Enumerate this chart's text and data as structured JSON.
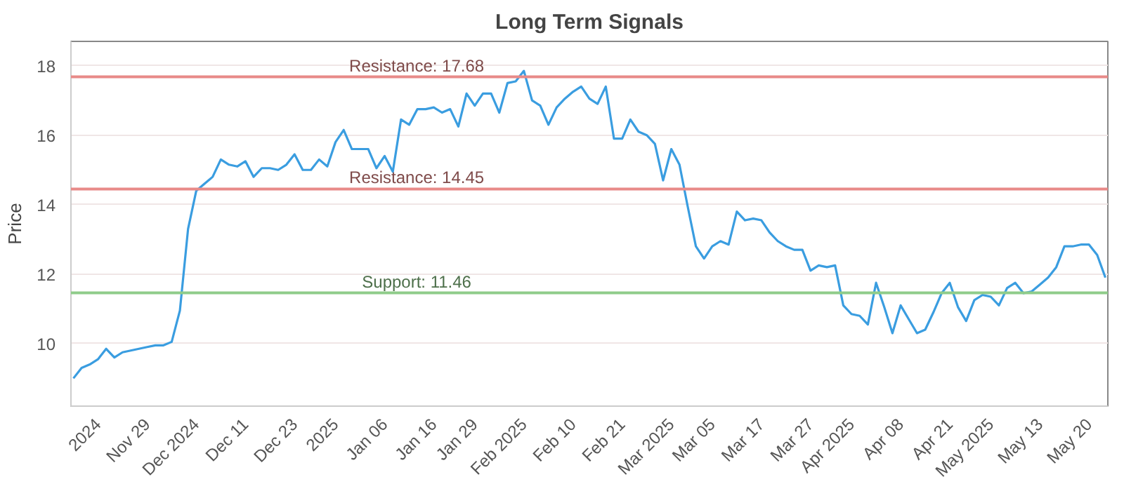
{
  "chart_data": {
    "type": "line",
    "title": "Long Term Signals",
    "ylabel": "Price",
    "categories": [
      null,
      null,
      null,
      "2024",
      null,
      null,
      null,
      null,
      null,
      "Nov 29",
      null,
      null,
      null,
      null,
      null,
      "Dec 2024",
      null,
      null,
      null,
      null,
      null,
      "Dec 11",
      null,
      null,
      null,
      null,
      null,
      "Dec 23",
      null,
      null,
      null,
      null,
      "2025",
      null,
      null,
      null,
      null,
      null,
      "Jan 06",
      null,
      null,
      null,
      null,
      null,
      "Jan 16",
      null,
      null,
      null,
      null,
      "Jan 29",
      null,
      null,
      null,
      null,
      null,
      "Feb 2025",
      null,
      null,
      null,
      null,
      null,
      "Feb 10",
      null,
      null,
      null,
      null,
      null,
      "Feb 21",
      null,
      null,
      null,
      null,
      null,
      "Mar 2025",
      null,
      null,
      null,
      null,
      "Mar 05",
      null,
      null,
      null,
      null,
      null,
      "Mar 17",
      null,
      null,
      null,
      null,
      null,
      "Mar 27",
      null,
      null,
      null,
      null,
      "Apr 2025",
      null,
      null,
      null,
      null,
      null,
      "Apr 08",
      null,
      null,
      null,
      null,
      null,
      "Apr 21",
      null,
      null,
      null,
      null,
      "May 2025",
      null,
      null,
      null,
      null,
      null,
      "May 13",
      null,
      null,
      null,
      null,
      null,
      "May 20",
      null,
      null
    ],
    "series": [
      {
        "color": "#3a9de0",
        "values": [
          9.0,
          9.3,
          9.4,
          9.55,
          9.85,
          9.6,
          9.75,
          9.8,
          9.85,
          9.9,
          9.95,
          9.95,
          10.05,
          10.95,
          13.3,
          14.4,
          14.6,
          14.8,
          15.3,
          15.15,
          15.1,
          15.25,
          14.8,
          15.05,
          15.05,
          15.0,
          15.15,
          15.45,
          15.0,
          15.0,
          15.3,
          15.1,
          15.8,
          16.15,
          15.6,
          15.6,
          15.6,
          15.05,
          15.4,
          14.95,
          16.45,
          16.3,
          16.75,
          16.75,
          16.8,
          16.65,
          16.75,
          16.25,
          17.2,
          16.85,
          17.2,
          17.2,
          16.65,
          17.5,
          17.55,
          17.85,
          17.0,
          16.85,
          16.3,
          16.8,
          17.05,
          17.25,
          17.4,
          17.05,
          16.9,
          17.4,
          15.9,
          15.9,
          16.45,
          16.1,
          16.0,
          15.75,
          14.7,
          15.6,
          15.15,
          13.95,
          12.8,
          12.45,
          12.8,
          12.95,
          12.85,
          13.8,
          13.55,
          13.6,
          13.55,
          13.2,
          12.95,
          12.8,
          12.7,
          12.7,
          12.1,
          12.25,
          12.2,
          12.25,
          11.1,
          10.85,
          10.8,
          10.55,
          11.75,
          11.05,
          10.3,
          11.1,
          10.7,
          10.3,
          10.4,
          10.9,
          11.45,
          11.75,
          11.05,
          10.65,
          11.25,
          11.4,
          11.35,
          11.1,
          11.6,
          11.75,
          11.45,
          11.5,
          11.7,
          11.9,
          12.2,
          12.8,
          12.8,
          12.85,
          12.85,
          12.55,
          11.9
        ]
      }
    ],
    "ylim": [
      8.2,
      18.7
    ],
    "yticks": [
      10,
      12,
      14,
      16,
      18
    ],
    "grid": "y",
    "marker": "none",
    "line_style": "solid",
    "ref_lines": [
      {
        "axis": "y",
        "value": 17.68,
        "label": "Resistance: 17.68",
        "color": "#e88a88"
      },
      {
        "axis": "y",
        "value": 14.45,
        "label": "Resistance: 14.45",
        "color": "#e88a88"
      },
      {
        "axis": "y",
        "value": 11.46,
        "label": "Support: 11.46",
        "color": "#8fcc8a"
      }
    ]
  }
}
